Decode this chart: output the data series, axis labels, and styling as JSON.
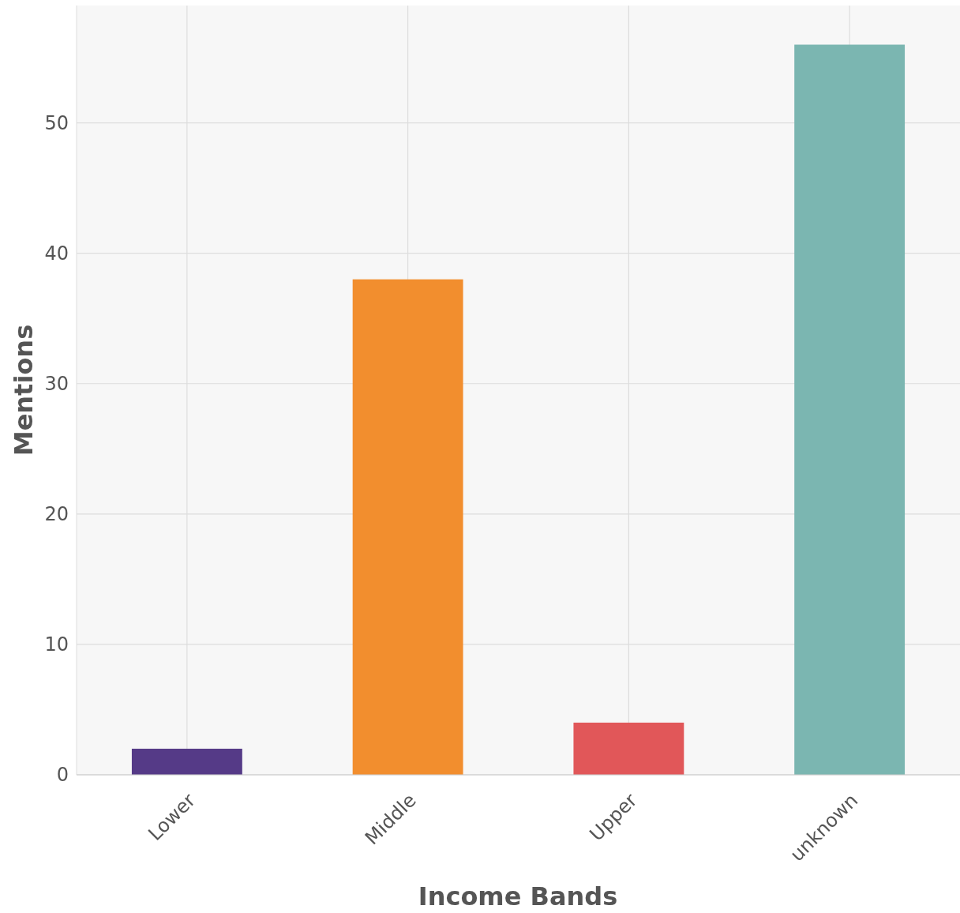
{
  "chart_data": {
    "type": "bar",
    "xlabel": "Income Bands",
    "ylabel": "Mentions",
    "categories": [
      "Lower",
      "Middle",
      "Upper",
      "unknown"
    ],
    "values": [
      2,
      38,
      4,
      56
    ],
    "colors": [
      "#553a87",
      "#f28e2e",
      "#e15759",
      "#7bb6b1"
    ],
    "ylim": [
      0,
      59
    ],
    "yticks": [
      0,
      10,
      20,
      30,
      40,
      50
    ],
    "grid": true
  }
}
